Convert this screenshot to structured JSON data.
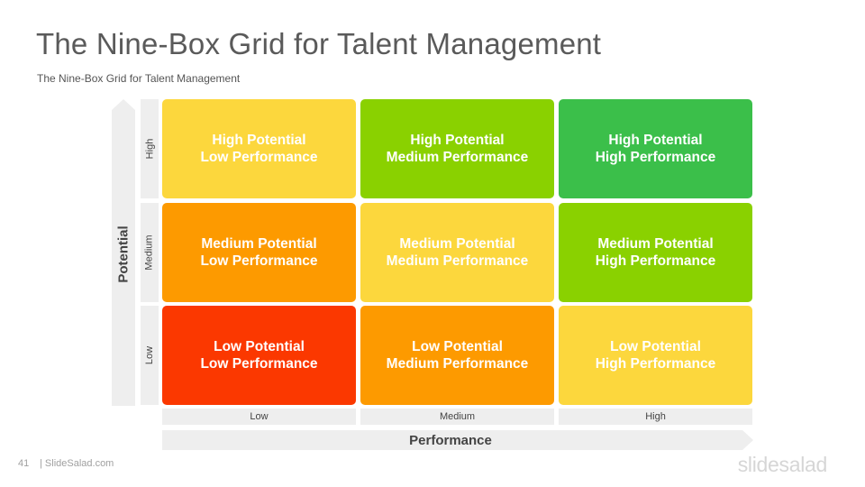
{
  "slide": {
    "title": "The Nine-Box Grid for Talent Management",
    "subtitle": "The Nine-Box Grid for Talent Management",
    "page_number": "41",
    "site": "| SlideSalad.com",
    "logo": "slidesalad"
  },
  "grid": {
    "y_axis_label": "Potential",
    "x_axis_label": "Performance",
    "row_labels": [
      "High",
      "Medium",
      "Low"
    ],
    "col_labels": [
      "Low",
      "Medium",
      "High"
    ],
    "cells": [
      [
        {
          "line1": "High Potential",
          "line2": "Low Performance",
          "color": "#fcd73d"
        },
        {
          "line1": "High Potential",
          "line2": "Medium Performance",
          "color": "#8ad100"
        },
        {
          "line1": "High Potential",
          "line2": "High Performance",
          "color": "#3bbf4a"
        }
      ],
      [
        {
          "line1": "Medium Potential",
          "line2": "Low Performance",
          "color": "#fd9a00"
        },
        {
          "line1": "Medium Potential",
          "line2": "Medium Performance",
          "color": "#fcd73d"
        },
        {
          "line1": "Medium Potential",
          "line2": "High Performance",
          "color": "#8ad100"
        }
      ],
      [
        {
          "line1": "Low Potential",
          "line2": "Low Performance",
          "color": "#fb3800"
        },
        {
          "line1": "Low Potential",
          "line2": "Medium Performance",
          "color": "#fd9a00"
        },
        {
          "line1": "Low Potential",
          "line2": "High Performance",
          "color": "#fcd73d"
        }
      ]
    ]
  }
}
